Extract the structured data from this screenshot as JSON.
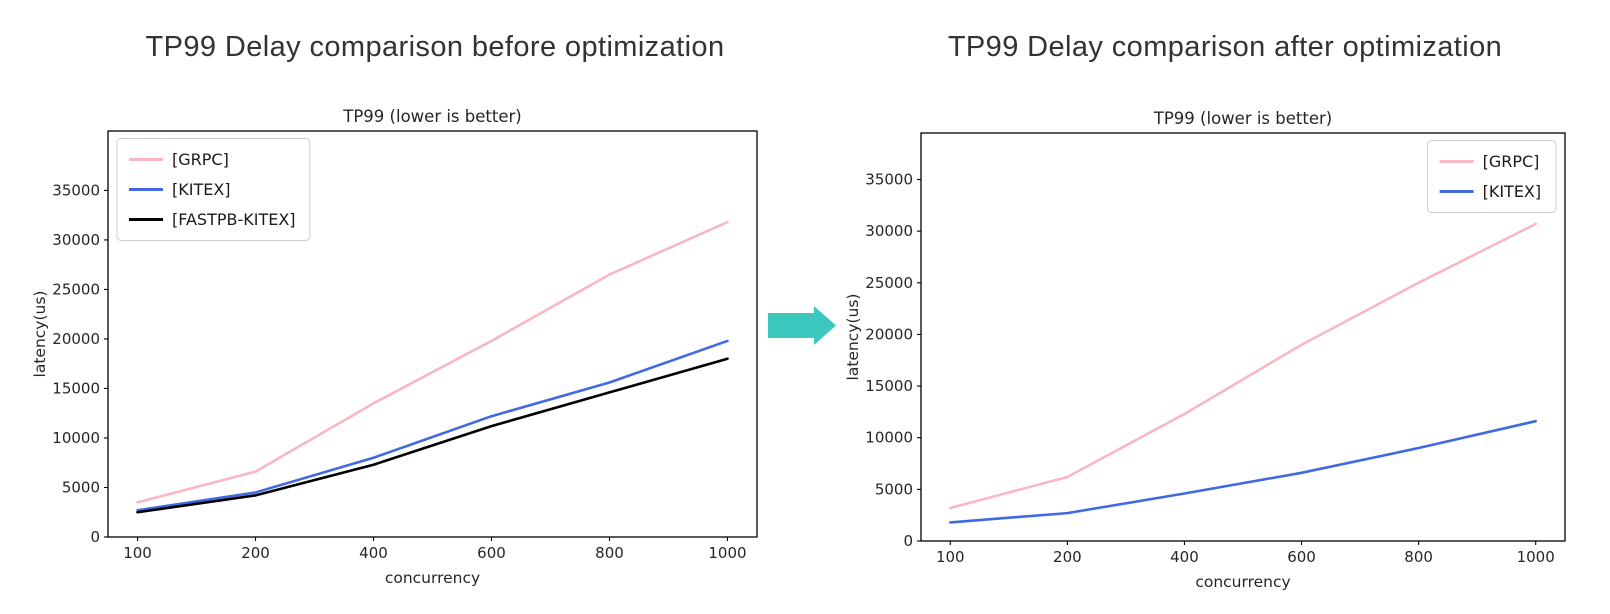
{
  "figures": [
    {
      "heading": "TP99 Delay comparison before optimization"
    },
    {
      "heading": "TP99 Delay comparison after optimization"
    }
  ],
  "arrow": {
    "icon": "right-arrow",
    "color": "#3CC8BE"
  },
  "chart_data": [
    {
      "type": "line",
      "title": "TP99 (lower is better)",
      "xlabel": "concurrency",
      "ylabel": "latency(us)",
      "categories": [
        100,
        200,
        400,
        600,
        800,
        1000
      ],
      "series": [
        {
          "name": "[GRPC]",
          "color": "#F8B7C3",
          "values": [
            3500,
            6600,
            13500,
            19800,
            26500,
            31800
          ]
        },
        {
          "name": "[KITEX]",
          "color": "#4169E1",
          "values": [
            2700,
            4500,
            8000,
            12200,
            15600,
            19800
          ]
        },
        {
          "name": "[FASTPB-KITEX]",
          "color": "#000000",
          "values": [
            2500,
            4200,
            7300,
            11200,
            14600,
            18000
          ]
        }
      ],
      "yticks": [
        0,
        5000,
        10000,
        15000,
        20000,
        25000,
        30000,
        35000
      ],
      "ylim": [
        0,
        41000
      ],
      "legend_position": "upper-left",
      "grid": false
    },
    {
      "type": "line",
      "title": "TP99 (lower is better)",
      "xlabel": "concurrency",
      "ylabel": "latency(us)",
      "categories": [
        100,
        200,
        400,
        600,
        800,
        1000
      ],
      "series": [
        {
          "name": "[GRPC]",
          "color": "#F8B7C3",
          "values": [
            3200,
            6200,
            12300,
            19000,
            25000,
            30700
          ]
        },
        {
          "name": "[KITEX]",
          "color": "#4169E1",
          "values": [
            1800,
            2700,
            4600,
            6600,
            9000,
            11600
          ]
        }
      ],
      "yticks": [
        0,
        5000,
        10000,
        15000,
        20000,
        25000,
        30000,
        35000
      ],
      "ylim": [
        0,
        39500
      ],
      "legend_position": "upper-right",
      "grid": false
    }
  ]
}
